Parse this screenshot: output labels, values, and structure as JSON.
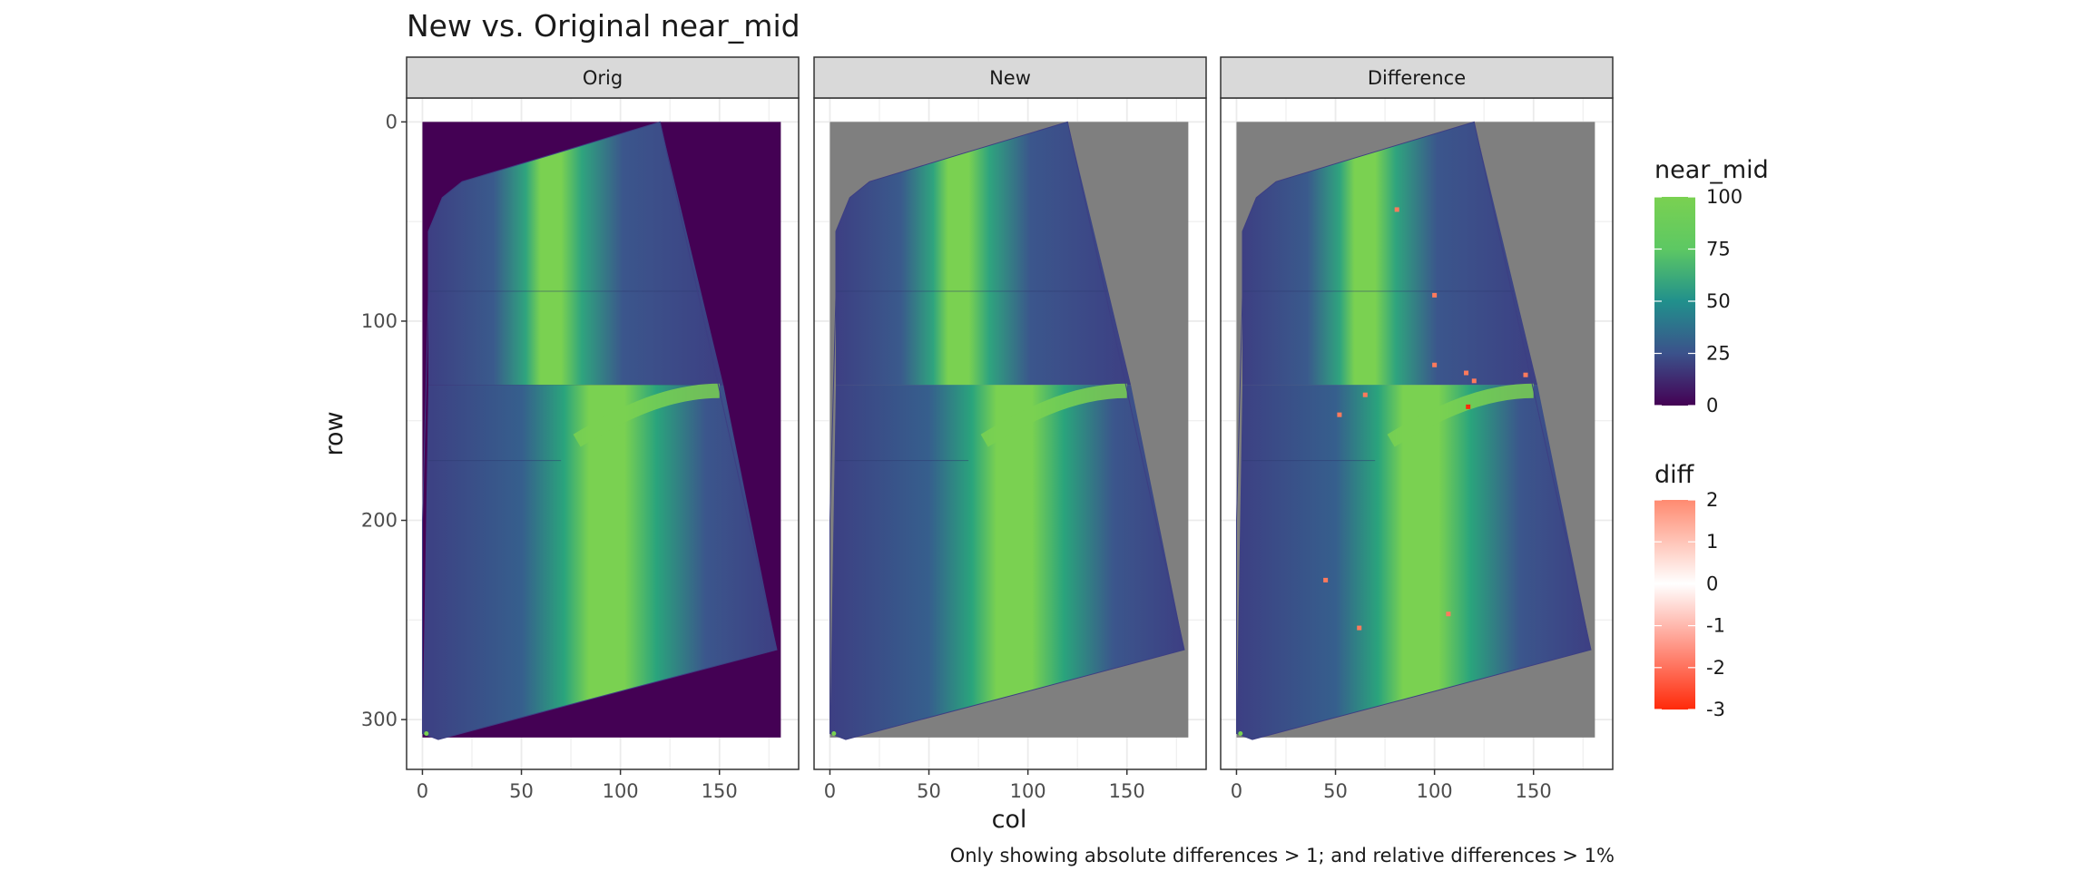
{
  "chart_data": {
    "type": "heatmap",
    "title": "New vs. Original near_mid",
    "caption": "Only showing absolute differences > 1; and relative differences > 1%",
    "xlabel": "col",
    "ylabel": "row",
    "xlim": [
      -8,
      190
    ],
    "ylim": [
      325,
      -12
    ],
    "x_ticks": [
      0,
      50,
      100,
      150
    ],
    "y_ticks": [
      0,
      100,
      200,
      300
    ],
    "grid": true,
    "panels": [
      {
        "label": "Orig"
      },
      {
        "label": "New"
      },
      {
        "label": "Difference"
      }
    ],
    "fill_scale": {
      "name": "near_mid",
      "limits": [
        0,
        100
      ],
      "breaks": [
        100,
        75,
        50,
        25,
        0
      ],
      "colors": [
        "#440154",
        "#3b528b",
        "#21908c",
        "#5dc863",
        "#7ad151"
      ]
    },
    "diff_scale": {
      "name": "diff",
      "limits": [
        -3,
        2
      ],
      "breaks": [
        2,
        1,
        0,
        -1,
        -2,
        -3
      ],
      "colors": [
        "#ff2a0a",
        "#ffffff",
        "#ff8a70"
      ]
    },
    "background_colors": {
      "Orig": "#440154",
      "New": "#7f7f7f",
      "Difference": "#7f7f7f"
    },
    "diff_points": [
      {
        "col": 81,
        "row": 44,
        "diff": -1.5
      },
      {
        "col": 100,
        "row": 87,
        "diff": -1.5
      },
      {
        "col": 100,
        "row": 122,
        "diff": -1.5
      },
      {
        "col": 116,
        "row": 126,
        "diff": -1.5
      },
      {
        "col": 120,
        "row": 130,
        "diff": -1.5
      },
      {
        "col": 146,
        "row": 127,
        "diff": -1.5
      },
      {
        "col": 65,
        "row": 137,
        "diff": -1.5
      },
      {
        "col": 52,
        "row": 147,
        "diff": -1.5
      },
      {
        "col": 117,
        "row": 143,
        "diff": -3
      },
      {
        "col": 45,
        "row": 230,
        "diff": -1.5
      },
      {
        "col": 62,
        "row": 254,
        "diff": -1.5
      },
      {
        "col": 107,
        "row": 247,
        "diff": -1.5
      }
    ]
  }
}
